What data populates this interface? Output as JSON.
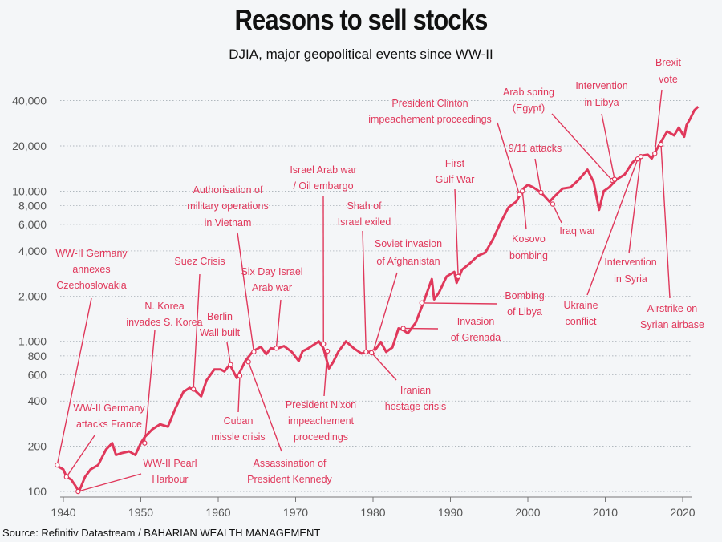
{
  "title": "Reasons to sell stocks",
  "subtitle": "DJIA, major geopolitical events since WW-II",
  "source": "Source: Refinitiv Datastream / BAHARIAN WEALTH MANAGEMENT",
  "colors": {
    "line": "#e0385b",
    "text": "#111111",
    "axis": "#555555"
  },
  "chart_data": {
    "type": "line",
    "title": "Reasons to sell stocks",
    "subtitle": "DJIA, major geopolitical events since WW-II",
    "yscale": "log",
    "xlim": [
      1939,
      2022.5
    ],
    "ylim": [
      90,
      50000
    ],
    "grid": true,
    "x_ticks": [
      1940,
      1950,
      1960,
      1970,
      1980,
      1990,
      2000,
      2010,
      2020
    ],
    "y_ticks": [
      {
        "value": 100,
        "label": "100"
      },
      {
        "value": 200,
        "label": "200"
      },
      {
        "value": 400,
        "label": "400"
      },
      {
        "value": 600,
        "label": "600"
      },
      {
        "value": 800,
        "label": "800"
      },
      {
        "value": 1000,
        "label": "1,000"
      },
      {
        "value": 2000,
        "label": "2,000"
      },
      {
        "value": 4000,
        "label": "4,000"
      },
      {
        "value": 6000,
        "label": "6,000"
      },
      {
        "value": 8000,
        "label": "8,000"
      },
      {
        "value": 10000,
        "label": "10,000"
      },
      {
        "value": 20000,
        "label": "20,000"
      },
      {
        "value": 40000,
        "label": "40,000"
      }
    ],
    "series": [
      {
        "x": [
          1939.0,
          1939.5,
          1940.0,
          1940.4,
          1941.0,
          1941.5,
          1942.0,
          1942.3,
          1942.8,
          1943.5,
          1944.5,
          1945.5,
          1946.3,
          1946.8,
          1947.5,
          1948.5,
          1949.3,
          1950.0,
          1950.5,
          1951.5,
          1952.5,
          1953.5,
          1954.5,
          1955.5,
          1956.3,
          1957.0,
          1957.8,
          1958.5,
          1959.5,
          1960.3,
          1960.8,
          1961.5,
          1962.4,
          1962.9,
          1963.5,
          1964.5,
          1965.5,
          1966.2,
          1966.8,
          1967.5,
          1968.5,
          1969.5,
          1970.4,
          1970.9,
          1971.5,
          1972.5,
          1973.0,
          1973.6,
          1974.3,
          1974.8,
          1975.5,
          1976.5,
          1977.5,
          1978.5,
          1979.5,
          1980.3,
          1981.0,
          1981.7,
          1982.5,
          1983.3,
          1984.0,
          1984.5,
          1985.5,
          1986.5,
          1987.6,
          1987.9,
          1988.5,
          1989.5,
          1990.5,
          1990.8,
          1991.5,
          1992.5,
          1993.5,
          1994.5,
          1995.5,
          1996.5,
          1997.5,
          1998.5,
          1999.5,
          2000.0,
          2000.7,
          2001.7,
          2002.8,
          2003.5,
          2004.5,
          2005.5,
          2006.5,
          2007.7,
          2008.5,
          2009.2,
          2009.8,
          2010.5,
          2011.5,
          2012.5,
          2013.5,
          2014.5,
          2015.5,
          2016.0,
          2017.0,
          2018.0,
          2018.9,
          2019.5,
          2020.2,
          2020.5,
          2021.0,
          2021.5,
          2022.0
        ],
        "values": [
          150,
          145,
          140,
          125,
          120,
          110,
          100,
          108,
          125,
          140,
          150,
          190,
          210,
          175,
          180,
          185,
          175,
          210,
          230,
          260,
          280,
          270,
          360,
          460,
          490,
          470,
          430,
          550,
          650,
          650,
          630,
          700,
          570,
          640,
          740,
          860,
          920,
          820,
          900,
          890,
          930,
          850,
          740,
          860,
          890,
          960,
          1000,
          900,
          660,
          720,
          850,
          1000,
          900,
          830,
          850,
          880,
          990,
          850,
          910,
          1220,
          1180,
          1130,
          1330,
          1800,
          2600,
          1900,
          2100,
          2700,
          2900,
          2450,
          3000,
          3300,
          3700,
          3900,
          4800,
          6200,
          7800,
          8500,
          10500,
          11000,
          10600,
          9800,
          8500,
          9300,
          10400,
          10600,
          11800,
          13900,
          11500,
          7500,
          10000,
          10600,
          12000,
          12900,
          15500,
          17200,
          17500,
          16500,
          20500,
          25000,
          23500,
          26500,
          23000,
          27500,
          30500,
          34500,
          36500
        ]
      }
    ],
    "annotations": [
      {
        "text": "WW-II Germany annexes Czechoslovakia",
        "x": 1939.2,
        "y": 150
      },
      {
        "text": "WW-II Germany attacks France",
        "x": 1940.4,
        "y": 125
      },
      {
        "text": "WW-II Pearl Harbour",
        "x": 1941.9,
        "y": 100
      },
      {
        "text": "N. Korea invades S. Korea",
        "x": 1950.5,
        "y": 210
      },
      {
        "text": "Suez Crisis",
        "x": 1956.8,
        "y": 480
      },
      {
        "text": "Berlin Wall built",
        "x": 1961.6,
        "y": 700
      },
      {
        "text": "Cuban missle crisis",
        "x": 1962.8,
        "y": 590
      },
      {
        "text": "Authorisation of military operations in Vietnam",
        "x": 1964.6,
        "y": 850
      },
      {
        "text": "Assassination of President Kennedy",
        "x": 1963.9,
        "y": 730
      },
      {
        "text": "Six Day Israel Arab war",
        "x": 1967.5,
        "y": 900
      },
      {
        "text": "Israel Arab war / Oil embargo",
        "x": 1973.6,
        "y": 960
      },
      {
        "text": "President Nixon impeachement proceedings",
        "x": 1974.1,
        "y": 860
      },
      {
        "text": "Shah of Israel exiled",
        "x": 1979.1,
        "y": 850
      },
      {
        "text": "Soviet invasion of Afghanistan",
        "x": 1980.0,
        "y": 850
      },
      {
        "text": "Iranian hostage crisis",
        "x": 1979.8,
        "y": 840
      },
      {
        "text": "Invasion of Grenada",
        "x": 1983.9,
        "y": 1220
      },
      {
        "text": "Bombing of Libya",
        "x": 1986.3,
        "y": 1800
      },
      {
        "text": "First Gulf War",
        "x": 1991.0,
        "y": 2700
      },
      {
        "text": "President Clinton impeachement proceedings",
        "x": 1998.9,
        "y": 9500
      },
      {
        "text": "Kosovo bombing",
        "x": 1999.3,
        "y": 10000
      },
      {
        "text": "9/11 attacks",
        "x": 2001.7,
        "y": 9800
      },
      {
        "text": "Iraq war",
        "x": 2003.2,
        "y": 8200
      },
      {
        "text": "Arab spring (Egypt)",
        "x": 2010.9,
        "y": 11800
      },
      {
        "text": "Intervention in Libya",
        "x": 2011.2,
        "y": 12000
      },
      {
        "text": "Ukraine conflict",
        "x": 2014.2,
        "y": 16400
      },
      {
        "text": "Intervention in Syria",
        "x": 2014.6,
        "y": 17000
      },
      {
        "text": "Brexit vote",
        "x": 2016.4,
        "y": 17800
      },
      {
        "text": "Airstrike on Syrian airbase",
        "x": 2017.2,
        "y": 20500
      }
    ]
  }
}
